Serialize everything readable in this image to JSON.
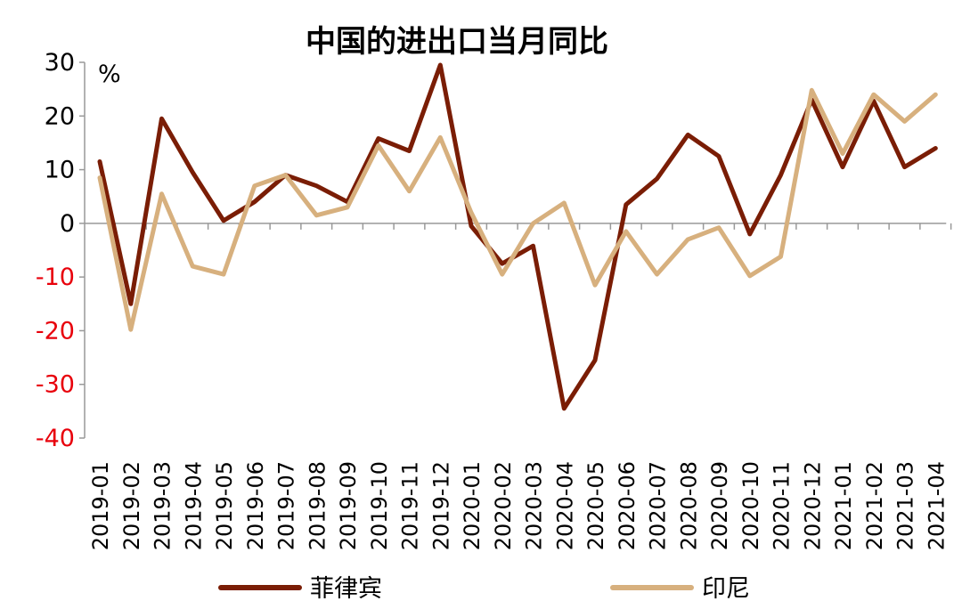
{
  "chart_data": {
    "type": "line",
    "title": "中国的进出口当月同比",
    "unit_label": "%",
    "ylim": [
      -40,
      30
    ],
    "yticks": [
      30,
      20,
      10,
      0,
      -10,
      -20,
      -30,
      -40
    ],
    "legend_position": "bottom",
    "grid": false,
    "negative_tick_color": "#e8000b",
    "positive_tick_color": "#000000",
    "categories": [
      "2019-01",
      "2019-02",
      "2019-03",
      "2019-04",
      "2019-05",
      "2019-06",
      "2019-07",
      "2019-08",
      "2019-09",
      "2019-10",
      "2019-11",
      "2019-12",
      "2020-01",
      "2020-02",
      "2020-03",
      "2020-04",
      "2020-05",
      "2020-06",
      "2020-07",
      "2020-08",
      "2020-09",
      "2020-10",
      "2020-11",
      "2020-12",
      "2021-01",
      "2021-02",
      "2021-03",
      "2021-04"
    ],
    "series": [
      {
        "name": "菲律宾",
        "color": "#7a1d05",
        "values": [
          11.5,
          -15,
          19.5,
          9.5,
          0.5,
          4,
          9,
          7,
          4,
          15.8,
          13.5,
          29.5,
          -0.5,
          -7.5,
          -4.2,
          -34.5,
          -25.5,
          3.5,
          8.3,
          16.5,
          12.5,
          -2,
          9,
          23,
          10.5,
          22.8,
          10.5,
          14
        ]
      },
      {
        "name": "印尼",
        "color": "#d7b07e",
        "values": [
          8.5,
          -19.8,
          5.5,
          -8,
          -9.5,
          7,
          9,
          1.5,
          3,
          14.5,
          6,
          16,
          2,
          -9.5,
          0,
          3.8,
          -11.5,
          -1.5,
          -9.5,
          -3,
          -0.8,
          -9.8,
          -6.2,
          24.8,
          13,
          24,
          19,
          24
        ]
      }
    ]
  }
}
